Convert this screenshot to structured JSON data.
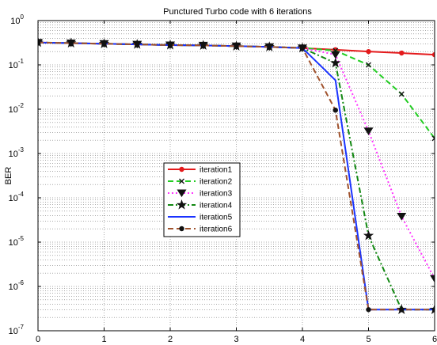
{
  "chart_data": {
    "type": "line",
    "title": "Punctured Turbo code with 6 iterations",
    "xlabel": "",
    "ylabel": "BER",
    "xlim": [
      0,
      6
    ],
    "ylim": [
      1e-07,
      1
    ],
    "yscale": "log",
    "grid": true,
    "legend_position": "center-left",
    "x_ticks": [
      "0",
      "1",
      "2",
      "3",
      "4",
      "5",
      "6"
    ],
    "y_ticks": [
      {
        "base": "10",
        "exp": "0"
      },
      {
        "base": "10",
        "exp": "-1"
      },
      {
        "base": "10",
        "exp": "-2"
      },
      {
        "base": "10",
        "exp": "-3"
      },
      {
        "base": "10",
        "exp": "-4"
      },
      {
        "base": "10",
        "exp": "-5"
      },
      {
        "base": "10",
        "exp": "-6"
      },
      {
        "base": "10",
        "exp": "-7"
      }
    ],
    "series": [
      {
        "name": "iteration1",
        "color": "#e41a1c",
        "dash": "solid",
        "marker": "dot",
        "x": [
          0,
          0.5,
          1,
          1.5,
          2,
          2.5,
          3,
          3.5,
          4,
          4.5,
          5,
          5.5,
          6
        ],
        "y": [
          0.32,
          0.31,
          0.3,
          0.29,
          0.28,
          0.275,
          0.265,
          0.255,
          0.24,
          0.22,
          0.2,
          0.185,
          0.17
        ]
      },
      {
        "name": "iteration2",
        "color": "#22cc22",
        "dash": "dashed",
        "marker": "x",
        "x": [
          0,
          0.5,
          1,
          1.5,
          2,
          2.5,
          3,
          3.5,
          4,
          4.5,
          5,
          5.5,
          6
        ],
        "y": [
          0.32,
          0.31,
          0.3,
          0.29,
          0.28,
          0.275,
          0.265,
          0.255,
          0.24,
          0.21,
          0.1,
          0.022,
          0.0022
        ]
      },
      {
        "name": "iteration3",
        "color": "#ff33ff",
        "dash": "dotted",
        "marker": "triangle-down",
        "x": [
          0,
          0.5,
          1,
          1.5,
          2,
          2.5,
          3,
          3.5,
          4,
          4.5,
          5,
          5.5,
          6
        ],
        "y": [
          0.32,
          0.31,
          0.3,
          0.29,
          0.28,
          0.275,
          0.265,
          0.255,
          0.24,
          0.17,
          0.0032,
          3.8e-05,
          1.5e-06
        ]
      },
      {
        "name": "iteration4",
        "color": "#118811",
        "dash": "dashdot",
        "marker": "star",
        "x": [
          0,
          0.5,
          1,
          1.5,
          2,
          2.5,
          3,
          3.5,
          4,
          4.5,
          5,
          5.5,
          6
        ],
        "y": [
          0.32,
          0.31,
          0.3,
          0.29,
          0.28,
          0.275,
          0.265,
          0.255,
          0.24,
          0.11,
          1.4e-05,
          3e-07,
          3e-07
        ]
      },
      {
        "name": "iteration5",
        "color": "#1a33ff",
        "dash": "solid",
        "marker": "none",
        "x": [
          0,
          0.5,
          1,
          1.5,
          2,
          2.5,
          3,
          3.5,
          4,
          4.5,
          5,
          5.5,
          6
        ],
        "y": [
          0.32,
          0.31,
          0.3,
          0.29,
          0.28,
          0.275,
          0.265,
          0.255,
          0.24,
          0.045,
          3e-07,
          3e-07,
          3e-07
        ]
      },
      {
        "name": "iteration6",
        "color": "#a0522d",
        "dash": "dashed",
        "marker": "dot",
        "x": [
          0,
          0.5,
          1,
          1.5,
          2,
          2.5,
          3,
          3.5,
          4,
          4.5,
          5,
          5.5,
          6
        ],
        "y": [
          0.32,
          0.31,
          0.3,
          0.29,
          0.28,
          0.275,
          0.265,
          0.255,
          0.24,
          0.0095,
          3e-07,
          3e-07,
          3e-07
        ]
      }
    ]
  }
}
